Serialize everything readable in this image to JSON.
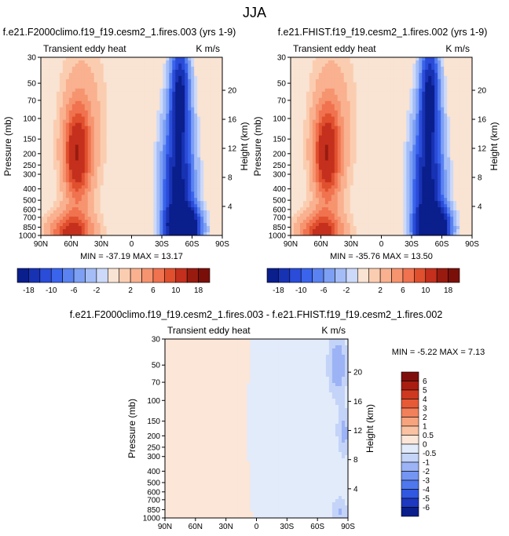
{
  "figure": {
    "title": "JJA"
  },
  "colors": {
    "panel_palette": [
      "#0a1e8c",
      "#1832b4",
      "#2a4cd8",
      "#3a64ec",
      "#5a82f0",
      "#7da0f4",
      "#a4bdf7",
      "#ccd9f9",
      "#f9e3d2",
      "#fbcdb0",
      "#f9b190",
      "#f6946f",
      "#f0724f",
      "#e0502e",
      "#c4301d",
      "#991b10",
      "#7a0f0a"
    ],
    "diff_palette": [
      "#0a1e8c",
      "#1e38c0",
      "#3158e0",
      "#4f78ee",
      "#7595f2",
      "#9cb3f5",
      "#c4d3f8",
      "#e2ebfa",
      "#fbe6d8",
      "#f9c2a2",
      "#f7a47e",
      "#f2805a",
      "#e65a36",
      "#cf3820",
      "#a81d10",
      "#7f0e0a"
    ]
  },
  "chart_data": [
    {
      "type": "contour",
      "title": "f.e21.F2000climo.f19_f19.cesm2_1.fires.003 (yrs 1-9)",
      "subtitle_left": "Transient eddy heat",
      "subtitle_right": "K m/s",
      "ylabel": "Pressure (mb)",
      "ylabel_right": "Height (km)",
      "x_ticks": [
        "90N",
        "60N",
        "30N",
        "0",
        "30S",
        "60S",
        "90S"
      ],
      "y_ticks": [
        "30",
        "50",
        "70",
        "100",
        "150",
        "200",
        "250",
        "300",
        "400",
        "500",
        "600",
        "700",
        "850",
        "1000"
      ],
      "y_ticks_right": [
        "20",
        "16",
        "12",
        "8",
        "4"
      ],
      "xlim": [
        90,
        -90
      ],
      "ylim": [
        1000,
        30
      ],
      "y_scale": "log",
      "stats": "MIN = -37.19  MAX =  13.17",
      "colorbar_labels": [
        "-18",
        "-10",
        "-6",
        "-2",
        "2",
        "6",
        "10",
        "18"
      ],
      "features": [
        {
          "lat": 54,
          "p": 205,
          "value": 12,
          "wlat": 9,
          "wlogp": 0.28
        },
        {
          "lat": 60,
          "p": 960,
          "value": 11,
          "wlat": 15,
          "wlogp": 0.12
        },
        {
          "lat": 48,
          "p": 100,
          "value": 3,
          "wlat": 16,
          "wlogp": 0.5
        },
        {
          "lat": -52,
          "p": 870,
          "value": -34,
          "wlat": 10,
          "wlogp": 0.12
        },
        {
          "lat": -46,
          "p": 400,
          "value": -20,
          "wlat": 10,
          "wlogp": 0.45
        },
        {
          "lat": -48,
          "p": 60,
          "value": -18,
          "wlat": 6,
          "wlogp": 0.3
        }
      ]
    },
    {
      "type": "contour",
      "title": "f.e21.FHIST.f19_f19.cesm2_1.fires.002 (yrs 1-9)",
      "subtitle_left": "Transient eddy heat",
      "subtitle_right": "K m/s",
      "ylabel": "Pressure (mb)",
      "ylabel_right": "Height (km)",
      "x_ticks": [
        "90N",
        "60N",
        "30N",
        "0",
        "30S",
        "60S",
        "90S"
      ],
      "y_ticks": [
        "30",
        "50",
        "70",
        "100",
        "150",
        "200",
        "250",
        "300",
        "400",
        "500",
        "600",
        "700",
        "850",
        "1000"
      ],
      "y_ticks_right": [
        "20",
        "16",
        "12",
        "8",
        "4"
      ],
      "xlim": [
        90,
        -90
      ],
      "ylim": [
        1000,
        30
      ],
      "y_scale": "log",
      "stats": "MIN = -35.76  MAX =  13.50",
      "colorbar_labels": [
        "-18",
        "-10",
        "-6",
        "-2",
        "2",
        "6",
        "10",
        "18"
      ],
      "features": [
        {
          "lat": 54,
          "p": 205,
          "value": 12,
          "wlat": 9,
          "wlogp": 0.28
        },
        {
          "lat": 60,
          "p": 960,
          "value": 11,
          "wlat": 15,
          "wlogp": 0.12
        },
        {
          "lat": 48,
          "p": 100,
          "value": 3,
          "wlat": 16,
          "wlogp": 0.5
        },
        {
          "lat": -52,
          "p": 870,
          "value": -33,
          "wlat": 10,
          "wlogp": 0.12
        },
        {
          "lat": -46,
          "p": 400,
          "value": -20,
          "wlat": 10,
          "wlogp": 0.45
        },
        {
          "lat": -48,
          "p": 60,
          "value": -18,
          "wlat": 6,
          "wlogp": 0.3
        }
      ]
    },
    {
      "type": "contour",
      "title": "f.e21.F2000climo.f19_f19.cesm2_1.fires.003 - f.e21.FHIST.f19_f19.cesm2_1.fires.002",
      "subtitle_left": "Transient eddy heat",
      "subtitle_right": "K m/s",
      "ylabel": "Pressure (mb)",
      "ylabel_right": "Height (km)",
      "x_ticks": [
        "90N",
        "60N",
        "30N",
        "0",
        "30S",
        "60S",
        "90S"
      ],
      "y_ticks": [
        "30",
        "50",
        "70",
        "100",
        "150",
        "200",
        "250",
        "300",
        "400",
        "500",
        "600",
        "700",
        "850",
        "1000"
      ],
      "y_ticks_right": [
        "20",
        "16",
        "12",
        "8",
        "4"
      ],
      "xlim": [
        90,
        -90
      ],
      "ylim": [
        1000,
        30
      ],
      "y_scale": "log",
      "stats": "MIN = -5.22  MAX =  7.13",
      "colorbar_labels": [
        "6",
        "5",
        "4",
        "3",
        "2",
        "1",
        "0.5",
        "0",
        "-0.5",
        "-1",
        "-2",
        "-3",
        "-4",
        "-5",
        "-6"
      ],
      "features": [
        {
          "lat": -80,
          "p": 50,
          "value": -1.5,
          "wlat": 7,
          "wlogp": 0.2
        },
        {
          "lat": -86,
          "p": 190,
          "value": -1.2,
          "wlat": 5,
          "wlogp": 0.15
        },
        {
          "lat": -82,
          "p": 880,
          "value": -1.0,
          "wlat": 6,
          "wlogp": 0.1
        },
        {
          "lat": 35,
          "p": 500,
          "value": 0.4,
          "wlat": 25,
          "wlogp": 0.8
        },
        {
          "lat": -20,
          "p": 300,
          "value": -0.4,
          "wlat": 25,
          "wlogp": 0.6
        }
      ]
    }
  ]
}
